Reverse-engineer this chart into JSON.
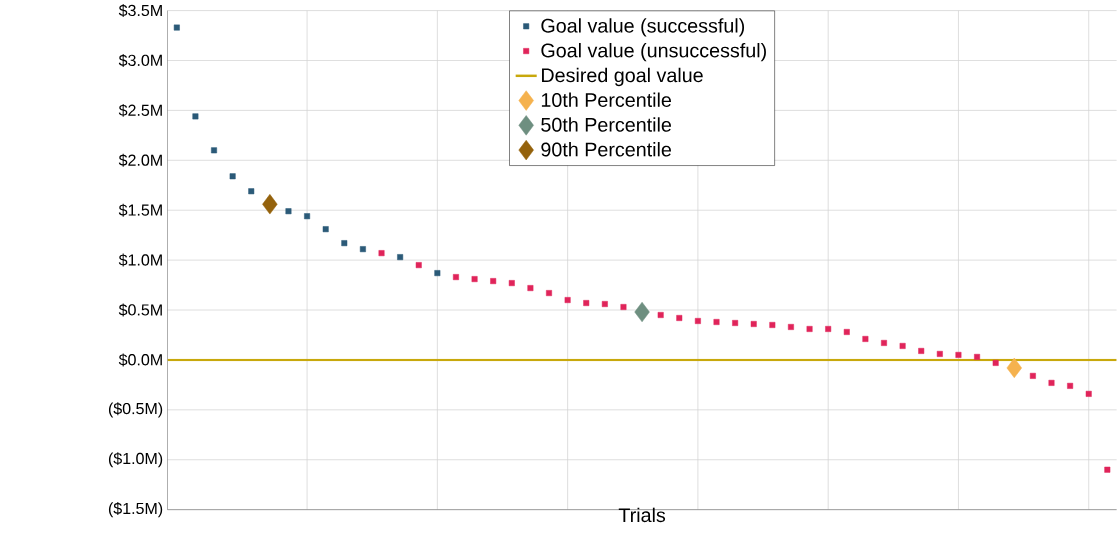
{
  "chart_data": {
    "type": "scatter",
    "xlabel": "Trials",
    "categories": [
      null,
      null,
      null,
      null,
      null,
      null,
      null,
      null,
      null,
      null,
      null,
      null,
      null,
      null,
      null,
      null,
      null,
      null,
      null,
      null,
      null,
      null,
      null,
      null,
      null,
      null,
      null,
      null,
      null,
      null,
      null,
      null,
      null,
      null,
      null,
      null,
      null,
      null,
      null,
      null,
      null,
      null,
      null,
      null,
      null,
      null,
      null,
      null,
      null,
      null,
      null
    ],
    "ylim": [
      -1.5,
      3.5
    ],
    "yticks": [
      {
        "value": -1.5,
        "label": "($1.5M)"
      },
      {
        "value": -1.0,
        "label": "($1.0M)"
      },
      {
        "value": -0.5,
        "label": "($0.5M)"
      },
      {
        "value": 0,
        "label": "$0.0M"
      },
      {
        "value": 0.5,
        "label": "$0.5M"
      },
      {
        "value": 1.0,
        "label": "$1.0M"
      },
      {
        "value": 1.5,
        "label": "$1.5M"
      },
      {
        "value": 2.0,
        "label": "$2.0M"
      },
      {
        "value": 2.5,
        "label": "$2.5M"
      },
      {
        "value": 3.0,
        "label": "$3.0M"
      },
      {
        "value": 3.5,
        "label": "$3.5M"
      }
    ],
    "grid": true,
    "legend": "top",
    "ref_lines": [
      {
        "axis": "y",
        "value": 0,
        "label": "Desired goal value",
        "color": "#c8a80c"
      }
    ],
    "series": [
      {
        "name": "Goal value (successful)",
        "color": "#2b5a78",
        "marker": "square",
        "values": [
          3.33,
          2.44,
          2.1,
          1.84,
          1.69,
          null,
          1.49,
          1.44,
          1.31,
          1.17,
          1.11,
          null,
          1.03,
          null,
          0.87,
          null,
          null,
          null,
          null,
          null,
          null,
          null,
          null,
          null,
          null,
          null,
          null,
          null,
          null,
          null,
          null,
          null,
          null,
          null,
          null,
          null,
          null,
          null,
          null,
          null,
          null,
          null,
          null,
          null,
          null,
          null,
          null,
          null,
          null,
          null,
          null
        ]
      },
      {
        "name": "Goal value (unsuccessful)",
        "color": "#e0245a",
        "marker": "square",
        "values": [
          null,
          null,
          null,
          null,
          null,
          null,
          null,
          null,
          null,
          null,
          null,
          1.07,
          null,
          0.95,
          null,
          0.83,
          0.81,
          0.79,
          0.77,
          0.72,
          0.67,
          0.6,
          0.57,
          0.56,
          0.53,
          null,
          0.45,
          0.42,
          0.39,
          0.38,
          0.37,
          0.36,
          0.35,
          0.33,
          0.31,
          0.31,
          0.28,
          0.21,
          0.17,
          0.14,
          0.09,
          0.06,
          0.05,
          0.03,
          -0.03,
          null,
          -0.16,
          -0.23,
          -0.26,
          -0.34,
          -1.1
        ]
      },
      {
        "name": "10th Percentile",
        "color": "#f5b24e",
        "marker": "diamond",
        "values": [
          null,
          null,
          null,
          null,
          null,
          null,
          null,
          null,
          null,
          null,
          null,
          null,
          null,
          null,
          null,
          null,
          null,
          null,
          null,
          null,
          null,
          null,
          null,
          null,
          null,
          null,
          null,
          null,
          null,
          null,
          null,
          null,
          null,
          null,
          null,
          null,
          null,
          null,
          null,
          null,
          null,
          null,
          null,
          null,
          null,
          -0.08,
          null,
          null,
          null,
          null,
          null
        ]
      },
      {
        "name": "50th Percentile",
        "color": "#6e8f80",
        "marker": "diamond",
        "values": [
          null,
          null,
          null,
          null,
          null,
          null,
          null,
          null,
          null,
          null,
          null,
          null,
          null,
          null,
          null,
          null,
          null,
          null,
          null,
          null,
          null,
          null,
          null,
          null,
          null,
          0.48,
          null,
          null,
          null,
          null,
          null,
          null,
          null,
          null,
          null,
          null,
          null,
          null,
          null,
          null,
          null,
          null,
          null,
          null,
          null,
          null,
          null,
          null,
          null,
          null,
          null
        ]
      },
      {
        "name": "90th Percentile",
        "color": "#94620c",
        "marker": "diamond",
        "values": [
          null,
          null,
          null,
          null,
          null,
          1.56,
          null,
          null,
          null,
          null,
          null,
          null,
          null,
          null,
          null,
          null,
          null,
          null,
          null,
          null,
          null,
          null,
          null,
          null,
          null,
          null,
          null,
          null,
          null,
          null,
          null,
          null,
          null,
          null,
          null,
          null,
          null,
          null,
          null,
          null,
          null,
          null,
          null,
          null,
          null,
          null,
          null,
          null,
          null,
          null,
          null
        ]
      }
    ]
  }
}
